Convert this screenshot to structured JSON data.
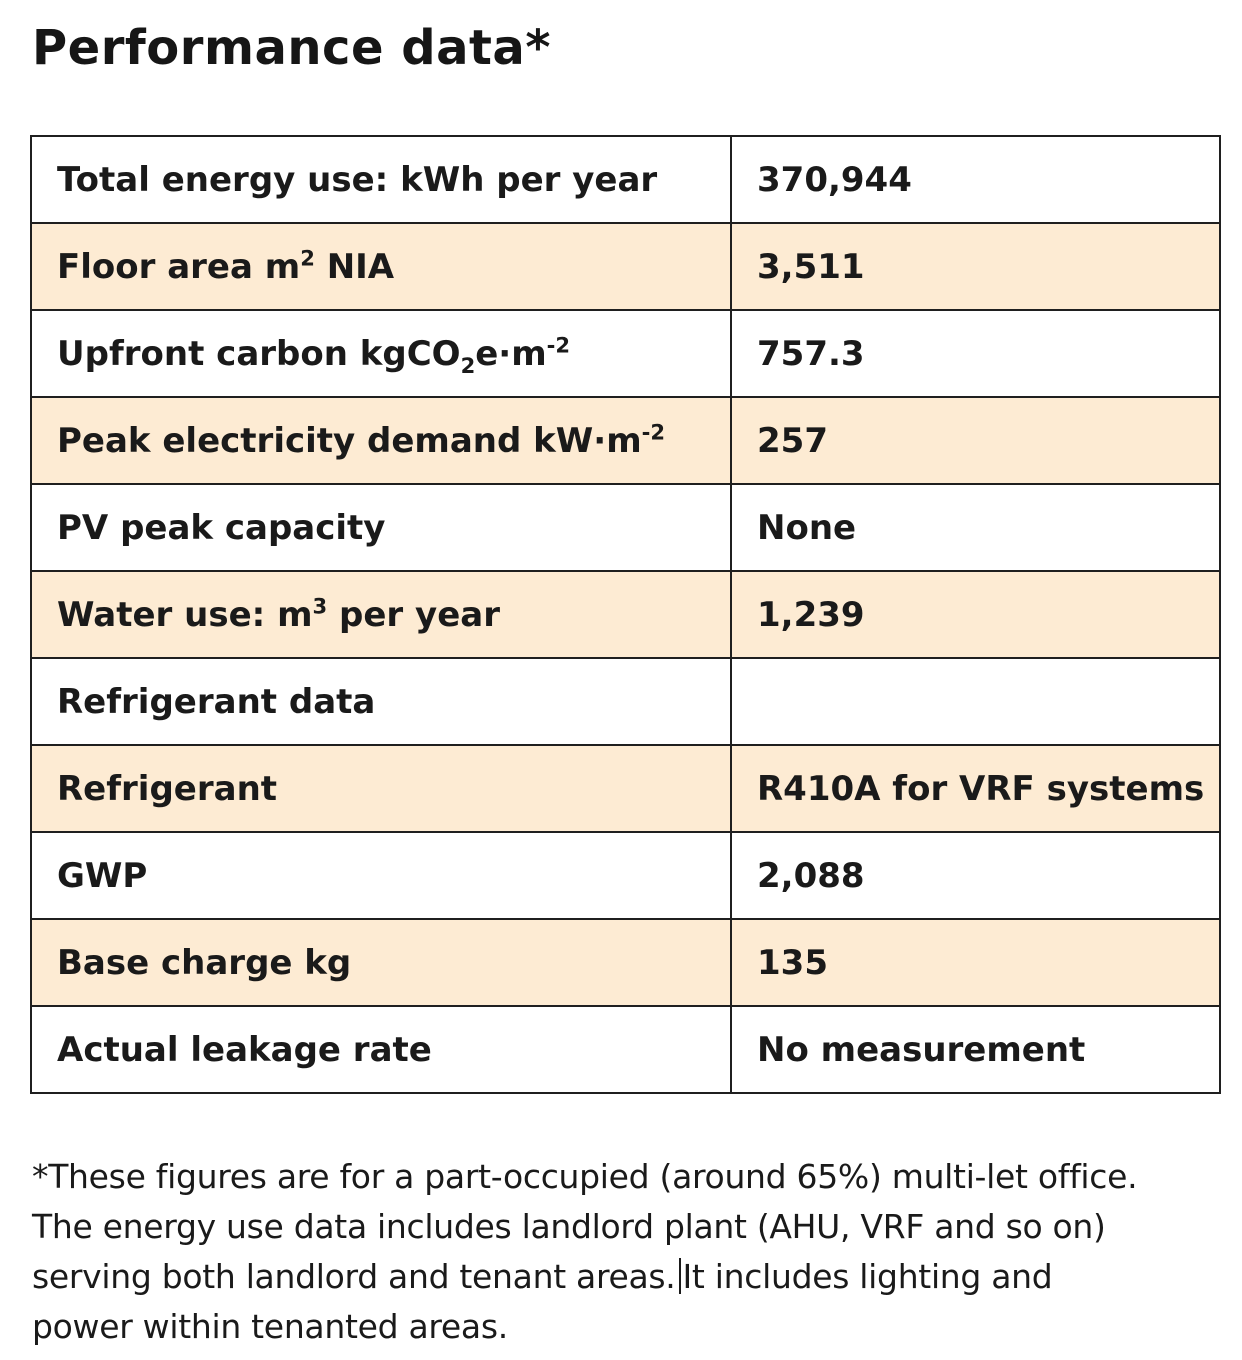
{
  "title": "Performance data*",
  "table": {
    "rows": [
      {
        "label_pre": "Total energy use: kWh per year",
        "label_sup": "",
        "label_mid": "",
        "label_sub": "",
        "label_post": "",
        "value": "370,944"
      },
      {
        "label_pre": "Floor area m",
        "label_sup": "2",
        "label_mid": "",
        "label_sub": "",
        "label_post": " NIA",
        "value": "3,511"
      },
      {
        "label_pre": "Upfront carbon kgCO",
        "label_sup": "",
        "label_mid": "",
        "label_sub": "2",
        "label_post": "e·m",
        "label_sup2": "-2",
        "value": "757.3"
      },
      {
        "label_pre": "Peak electricity demand kW·m",
        "label_sup": "-2",
        "label_mid": "",
        "label_sub": "",
        "label_post": "",
        "value": "257"
      },
      {
        "label_pre": "PV peak capacity",
        "label_sup": "",
        "label_mid": "",
        "label_sub": "",
        "label_post": "",
        "value": "None"
      },
      {
        "label_pre": "Water use: m",
        "label_sup": "3",
        "label_mid": "",
        "label_sub": "",
        "label_post": " per year",
        "value": "1,239"
      },
      {
        "label_pre": "Refrigerant data",
        "label_sup": "",
        "label_mid": "",
        "label_sub": "",
        "label_post": "",
        "value": ""
      },
      {
        "label_pre": "Refrigerant",
        "label_sup": "",
        "label_mid": "",
        "label_sub": "",
        "label_post": "",
        "value": "R410A for VRF systems"
      },
      {
        "label_pre": "GWP",
        "label_sup": "",
        "label_mid": "",
        "label_sub": "",
        "label_post": "",
        "value": "2,088"
      },
      {
        "label_pre": "Base charge kg",
        "label_sup": "",
        "label_mid": "",
        "label_sub": "",
        "label_post": "",
        "value": "135"
      },
      {
        "label_pre": "Actual leakage rate",
        "label_sup": "",
        "label_mid": "",
        "label_sub": "",
        "label_post": "",
        "value": "No measurement"
      }
    ]
  },
  "footnote": {
    "line1": "*These figures are for a part-occupied (around 65%) multi-let office.",
    "line2": "The energy use data includes landlord plant (AHU, VRF and so on)",
    "line3a": "serving both landlord and tenant areas.",
    "line3b": "It includes lighting and",
    "line4": "power within tenanted areas."
  },
  "colors": {
    "shaded_row": "#fdebd3",
    "plain_row": "#ffffff",
    "border": "#1f1f1f"
  }
}
